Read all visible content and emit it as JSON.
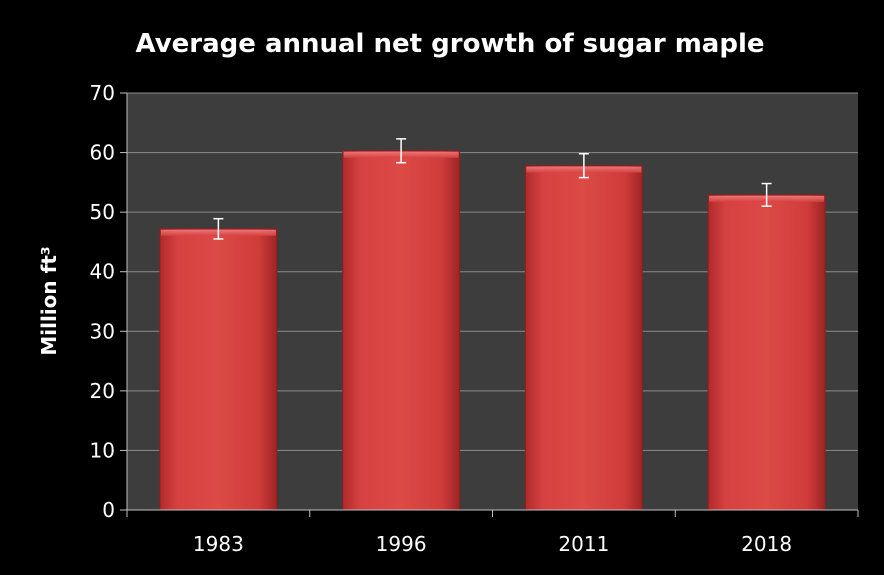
{
  "chart_data": {
    "type": "bar",
    "title": "Average annual net growth of sugar maple",
    "xlabel": "",
    "ylabel": "Million ft³",
    "categories": [
      "1983",
      "1996",
      "2011",
      "2018"
    ],
    "values": [
      47.2,
      60.3,
      57.8,
      52.9
    ],
    "error_bars": [
      1.7,
      2.0,
      2.0,
      1.9
    ],
    "ylim": [
      0,
      70
    ],
    "yticks": [
      "0",
      "10",
      "20",
      "30",
      "40",
      "50",
      "60",
      "70"
    ],
    "grid": true,
    "legend": "none",
    "colors": {
      "background": "#000000",
      "plot_area": "#3d3d3d",
      "bar_fill": "#d23c3c",
      "bar_edge": "#8a1f1f",
      "gridline": "#8c8c8c",
      "text": "#ffffff"
    }
  }
}
